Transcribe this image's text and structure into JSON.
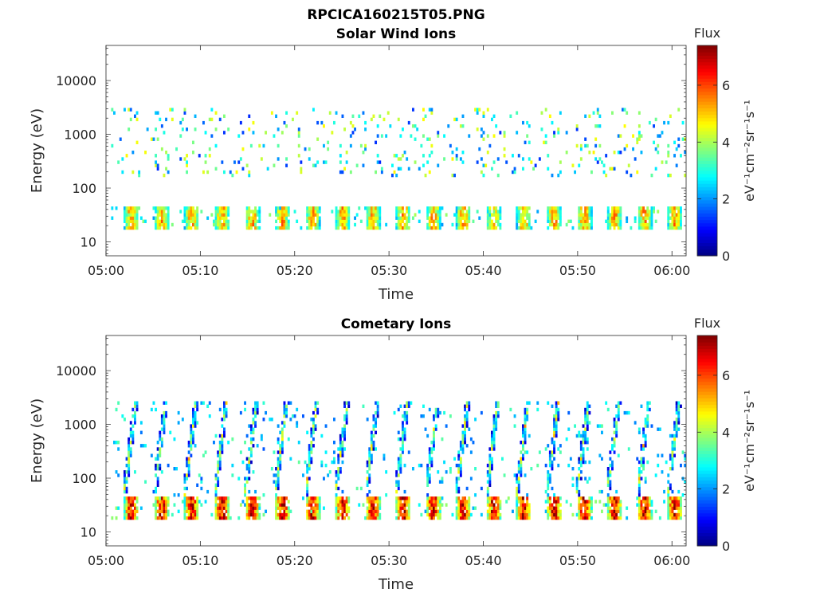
{
  "figure_title": "RPCICA160215T05.PNG",
  "chart_data": [
    {
      "type": "heatmap",
      "title": "Solar Wind Ions",
      "xlabel": "Time",
      "ylabel": "Energy (eV)",
      "x_ticks": [
        "05:00",
        "05:10",
        "05:20",
        "05:30",
        "05:40",
        "05:50",
        "06:00"
      ],
      "xlim_minutes": [
        0,
        61.5
      ],
      "y_scale": "log",
      "y_ticks": [
        10,
        100,
        1000,
        10000
      ],
      "y_tick_labels": [
        "10",
        "100",
        "1000",
        "10000"
      ],
      "ylim": [
        5.5,
        45000
      ],
      "colorbar": {
        "title": "Flux",
        "label": "eV⁻¹cm⁻²sr⁻¹s⁻¹",
        "ticks": [
          "0",
          "2",
          "4",
          "6"
        ],
        "range": [
          0,
          7.4
        ],
        "colormap": "jet"
      },
      "pulse_period_min": 3.2,
      "pulse_start_min": 1.8,
      "bands": [
        {
          "name": "low_energy",
          "e_min": 16,
          "e_max": 45,
          "flux_peak": 5.5
        },
        {
          "name": "mid_energy",
          "e_min": 150,
          "e_max": 3000,
          "flux_peak": 3.5
        }
      ]
    },
    {
      "type": "heatmap",
      "title": "Cometary Ions",
      "xlabel": "Time",
      "ylabel": "Energy (eV)",
      "x_ticks": [
        "05:00",
        "05:10",
        "05:20",
        "05:30",
        "05:40",
        "05:50",
        "06:00"
      ],
      "xlim_minutes": [
        0,
        61.5
      ],
      "y_scale": "log",
      "y_ticks": [
        10,
        100,
        1000,
        10000
      ],
      "y_tick_labels": [
        "10",
        "100",
        "1000",
        "10000"
      ],
      "ylim": [
        5.5,
        45000
      ],
      "colorbar": {
        "title": "Flux",
        "label": "eV⁻¹cm⁻²sr⁻¹s⁻¹",
        "ticks": [
          "0",
          "2",
          "4",
          "6"
        ],
        "range": [
          0,
          7.4
        ],
        "colormap": "jet"
      },
      "pulse_period_min": 3.2,
      "pulse_start_min": 1.8,
      "bands": [
        {
          "name": "low_energy",
          "e_min": 16,
          "e_max": 45,
          "flux_peak": 7.0
        },
        {
          "name": "rising_streaks",
          "e_min": 45,
          "e_max": 2500,
          "flux_peak": 5.0
        }
      ]
    }
  ]
}
